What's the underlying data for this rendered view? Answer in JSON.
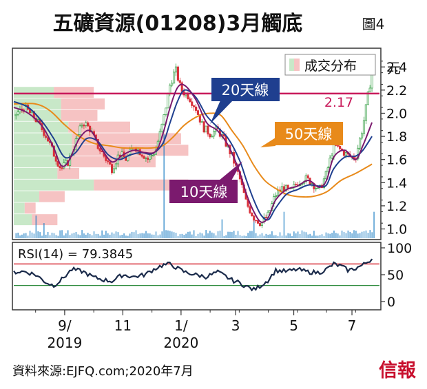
{
  "header": {
    "title": "五礦資源(01208)3月觸底",
    "figure_no": "圖4"
  },
  "legend": {
    "volume_profile_label": "成交分布"
  },
  "labels": {
    "ma20": "20天線",
    "ma50": "50天線",
    "ma10": "10天線",
    "price_line_value": "2.17",
    "currency": "元"
  },
  "colors": {
    "background": "#ffffff",
    "candle_up": "#2e9b3e",
    "candle_down": "#d9303a",
    "ma10": "#7b1a6e",
    "ma20": "#1f3f8f",
    "ma50": "#e88a1a",
    "price_line": "#c8195a",
    "rsi_line": "#1a2a4a",
    "rsi_upper": "#d9303a",
    "rsi_lower": "#2e8b3e",
    "volume": "#1e7fc4",
    "vp_green": "#c8e8c8",
    "vp_red": "#f6c3c3"
  },
  "footer": {
    "source": "資料來源:EJFQ.com;2020年7月",
    "logo": "信報"
  },
  "chart_data": [
    {
      "type": "candlestick",
      "title": "五礦資源(01208)3月觸底",
      "unit": "元",
      "ylim": [
        0.92,
        2.55
      ],
      "yticks": [
        "1.0",
        "1.2",
        "1.4",
        "1.6",
        "1.8",
        "2.0",
        "2.2",
        "2.4"
      ],
      "ytick_values": [
        1.0,
        1.2,
        1.4,
        1.6,
        1.8,
        2.0,
        2.2,
        2.4
      ],
      "x_range": [
        0,
        100
      ],
      "xticks": [
        {
          "label": "9/",
          "sub": "2019",
          "x": 14
        },
        {
          "label": "11",
          "sub": "",
          "x": 30
        },
        {
          "label": "1/",
          "sub": "2020",
          "x": 46
        },
        {
          "label": "3",
          "sub": "",
          "x": 61
        },
        {
          "label": "5",
          "sub": "",
          "x": 77
        },
        {
          "label": "7",
          "sub": "",
          "x": 93
        }
      ],
      "horizontal_line": 2.17,
      "price_path": [
        [
          0,
          1.98
        ],
        [
          3,
          2.05
        ],
        [
          6,
          1.95
        ],
        [
          9,
          1.8
        ],
        [
          11,
          1.65
        ],
        [
          13,
          1.52
        ],
        [
          15,
          1.58
        ],
        [
          17,
          1.75
        ],
        [
          19,
          1.93
        ],
        [
          21,
          1.86
        ],
        [
          23,
          1.72
        ],
        [
          25,
          1.62
        ],
        [
          27,
          1.52
        ],
        [
          29,
          1.65
        ],
        [
          31,
          1.6
        ],
        [
          33,
          1.72
        ],
        [
          35,
          1.66
        ],
        [
          37,
          1.6
        ],
        [
          39,
          1.68
        ],
        [
          41,
          1.92
        ],
        [
          43,
          2.25
        ],
        [
          44.5,
          2.38
        ],
        [
          46,
          2.2
        ],
        [
          48,
          2.15
        ],
        [
          50,
          2.05
        ],
        [
          52,
          1.88
        ],
        [
          54,
          1.82
        ],
        [
          56,
          1.86
        ],
        [
          58,
          1.76
        ],
        [
          60,
          1.63
        ],
        [
          62,
          1.45
        ],
        [
          64,
          1.22
        ],
        [
          66,
          1.1
        ],
        [
          68,
          1.05
        ],
        [
          70,
          1.12
        ],
        [
          72,
          1.3
        ],
        [
          74,
          1.36
        ],
        [
          76,
          1.32
        ],
        [
          78,
          1.4
        ],
        [
          80,
          1.44
        ],
        [
          82,
          1.4
        ],
        [
          84,
          1.33
        ],
        [
          86,
          1.48
        ],
        [
          88,
          1.72
        ],
        [
          90,
          1.68
        ],
        [
          92,
          1.63
        ],
        [
          94,
          1.62
        ],
        [
          96,
          1.88
        ],
        [
          97.5,
          2.17
        ],
        [
          98.5,
          2.35
        ]
      ],
      "series": [
        {
          "name": "10天線",
          "points": [
            [
              0,
              2.05
            ],
            [
              4,
              2.0
            ],
            [
              8,
              1.88
            ],
            [
              11,
              1.7
            ],
            [
              13,
              1.55
            ],
            [
              15,
              1.58
            ],
            [
              18,
              1.78
            ],
            [
              21,
              1.85
            ],
            [
              24,
              1.7
            ],
            [
              27,
              1.58
            ],
            [
              30,
              1.64
            ],
            [
              33,
              1.68
            ],
            [
              36,
              1.66
            ],
            [
              39,
              1.67
            ],
            [
              41,
              1.82
            ],
            [
              43,
              2.05
            ],
            [
              45,
              2.22
            ],
            [
              47,
              2.24
            ],
            [
              50,
              2.12
            ],
            [
              53,
              1.92
            ],
            [
              56,
              1.85
            ],
            [
              59,
              1.72
            ],
            [
              62,
              1.5
            ],
            [
              64,
              1.3
            ],
            [
              66,
              1.15
            ],
            [
              68,
              1.06
            ],
            [
              70,
              1.1
            ],
            [
              72,
              1.25
            ],
            [
              75,
              1.34
            ],
            [
              78,
              1.37
            ],
            [
              81,
              1.42
            ],
            [
              84,
              1.36
            ],
            [
              86,
              1.42
            ],
            [
              88,
              1.62
            ],
            [
              91,
              1.68
            ],
            [
              94,
              1.6
            ],
            [
              96,
              1.72
            ],
            [
              98.5,
              1.92
            ]
          ]
        },
        {
          "name": "20天線",
          "points": [
            [
              0,
              2.1
            ],
            [
              4,
              2.05
            ],
            [
              8,
              1.92
            ],
            [
              11,
              1.78
            ],
            [
              14,
              1.62
            ],
            [
              17,
              1.66
            ],
            [
              20,
              1.78
            ],
            [
              23,
              1.76
            ],
            [
              26,
              1.64
            ],
            [
              29,
              1.6
            ],
            [
              32,
              1.64
            ],
            [
              35,
              1.66
            ],
            [
              38,
              1.65
            ],
            [
              41,
              1.74
            ],
            [
              43,
              1.92
            ],
            [
              45,
              2.1
            ],
            [
              47,
              2.2
            ],
            [
              50,
              2.14
            ],
            [
              53,
              1.98
            ],
            [
              56,
              1.88
            ],
            [
              59,
              1.78
            ],
            [
              62,
              1.6
            ],
            [
              64,
              1.42
            ],
            [
              66,
              1.25
            ],
            [
              68,
              1.12
            ],
            [
              70,
              1.08
            ],
            [
              72,
              1.18
            ],
            [
              75,
              1.3
            ],
            [
              78,
              1.34
            ],
            [
              81,
              1.38
            ],
            [
              84,
              1.37
            ],
            [
              86,
              1.38
            ],
            [
              88,
              1.52
            ],
            [
              91,
              1.62
            ],
            [
              94,
              1.63
            ],
            [
              96,
              1.68
            ],
            [
              98.5,
              1.8
            ]
          ]
        },
        {
          "name": "50天線",
          "points": [
            [
              0,
              2.08
            ],
            [
              6,
              2.08
            ],
            [
              10,
              2.02
            ],
            [
              14,
              1.9
            ],
            [
              18,
              1.8
            ],
            [
              22,
              1.74
            ],
            [
              26,
              1.72
            ],
            [
              30,
              1.7
            ],
            [
              34,
              1.7
            ],
            [
              38,
              1.7
            ],
            [
              41,
              1.72
            ],
            [
              44,
              1.8
            ],
            [
              47,
              1.9
            ],
            [
              51,
              1.98
            ],
            [
              54,
              2.0
            ],
            [
              57,
              1.98
            ],
            [
              60,
              1.85
            ],
            [
              63,
              1.72
            ],
            [
              66,
              1.55
            ],
            [
              69,
              1.42
            ],
            [
              72,
              1.35
            ],
            [
              75,
              1.3
            ],
            [
              78,
              1.28
            ],
            [
              82,
              1.28
            ],
            [
              86,
              1.32
            ],
            [
              90,
              1.42
            ],
            [
              94,
              1.48
            ],
            [
              98.5,
              1.56
            ]
          ]
        }
      ],
      "volume_spikes": [
        [
          41,
          0.55
        ],
        [
          6,
          0.12
        ],
        [
          8,
          0.08
        ],
        [
          57,
          0.1
        ],
        [
          66,
          0.12
        ],
        [
          74,
          0.14
        ],
        [
          99,
          0.14
        ]
      ],
      "volume_profile": [
        {
          "price": 2.18,
          "green": 11,
          "red": 11
        },
        {
          "price": 2.08,
          "green": 13,
          "red": 12
        },
        {
          "price": 1.98,
          "green": 13,
          "red": 10
        },
        {
          "price": 1.88,
          "green": 15,
          "red": 17
        },
        {
          "price": 1.78,
          "green": 16,
          "red": 30
        },
        {
          "price": 1.68,
          "green": 16,
          "red": 32
        },
        {
          "price": 1.58,
          "green": 15,
          "red": 24
        },
        {
          "price": 1.48,
          "green": 12,
          "red": 6
        },
        {
          "price": 1.38,
          "green": 22,
          "red": 26
        },
        {
          "price": 1.28,
          "green": 7,
          "red": 7
        },
        {
          "price": 1.18,
          "green": 3,
          "red": 3
        },
        {
          "price": 1.08,
          "green": 5,
          "red": 7
        }
      ]
    },
    {
      "type": "line",
      "title": "RSI(14) = 79.3845",
      "ylim": [
        0,
        100
      ],
      "yticks": [
        "0",
        "50",
        "100"
      ],
      "ytick_values": [
        0,
        50,
        100
      ],
      "upper_line": 70,
      "lower_line": 30,
      "series": [
        {
          "name": "RSI(14)",
          "points": [
            [
              0,
              55
            ],
            [
              3,
              56
            ],
            [
              6,
              50
            ],
            [
              9,
              35
            ],
            [
              11,
              30
            ],
            [
              13,
              40
            ],
            [
              16,
              60
            ],
            [
              19,
              56
            ],
            [
              22,
              45
            ],
            [
              25,
              40
            ],
            [
              27,
              38
            ],
            [
              30,
              50
            ],
            [
              33,
              46
            ],
            [
              36,
              50
            ],
            [
              39,
              62
            ],
            [
              41,
              68
            ],
            [
              43,
              70
            ],
            [
              45,
              62
            ],
            [
              47,
              55
            ],
            [
              50,
              50
            ],
            [
              53,
              46
            ],
            [
              56,
              55
            ],
            [
              58,
              48
            ],
            [
              60,
              40
            ],
            [
              62,
              35
            ],
            [
              64,
              28
            ],
            [
              66,
              22
            ],
            [
              68,
              30
            ],
            [
              70,
              40
            ],
            [
              72,
              58
            ],
            [
              75,
              56
            ],
            [
              78,
              60
            ],
            [
              81,
              55
            ],
            [
              84,
              54
            ],
            [
              86,
              60
            ],
            [
              88,
              70
            ],
            [
              90,
              66
            ],
            [
              92,
              58
            ],
            [
              94,
              62
            ],
            [
              96,
              68
            ],
            [
              97.5,
              75
            ],
            [
              98.5,
              79.38
            ]
          ]
        }
      ]
    }
  ]
}
